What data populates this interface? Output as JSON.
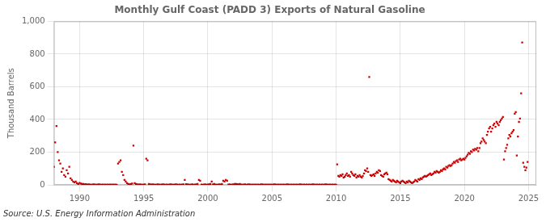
{
  "chart_data": {
    "type": "scatter",
    "title": "Monthly Gulf Coast (PADD 3) Exports of Natural Gasoline",
    "y_label": "Thousand Barrels",
    "annotations": [
      "Source: U.S. Energy Information Administration"
    ],
    "color": "#cc0000",
    "marker": "square",
    "grid": true,
    "xlim": [
      1988.0,
      2025.6
    ],
    "xticks": [
      1990,
      1995,
      2000,
      2005,
      2010,
      2015,
      2020,
      2025
    ],
    "ylim": [
      0,
      1000
    ],
    "yticks": [
      0,
      200,
      400,
      600,
      800,
      {
        "value": 1000,
        "label": "1,000"
      }
    ],
    "x": [
      1988.0,
      1988.1,
      1988.2,
      1988.3,
      1988.4,
      1988.5,
      1988.6,
      1988.7,
      1988.8,
      1988.9,
      1989.0,
      1989.1,
      1989.2,
      1989.3,
      1989.4,
      1989.5,
      1989.6,
      1989.7,
      1989.8,
      1989.9,
      1990.0,
      1990.1,
      1990.2,
      1990.3,
      1990.4,
      1990.5,
      1990.6,
      1990.7,
      1990.8,
      1990.9,
      1991.0,
      1991.1,
      1991.2,
      1991.3,
      1991.4,
      1991.5,
      1991.6,
      1991.7,
      1991.8,
      1991.9,
      1992.0,
      1992.1,
      1992.2,
      1992.3,
      1992.4,
      1992.5,
      1992.6,
      1992.7,
      1992.8,
      1992.9,
      1993.0,
      1993.1,
      1993.2,
      1993.3,
      1993.4,
      1993.5,
      1993.6,
      1993.7,
      1993.8,
      1993.9,
      1994.0,
      1994.1,
      1994.2,
      1994.3,
      1994.4,
      1994.5,
      1994.6,
      1994.7,
      1994.8,
      1994.9,
      1995.0,
      1995.1,
      1995.2,
      1995.3,
      1995.4,
      1995.5,
      1995.6,
      1995.7,
      1995.8,
      1995.9,
      1996.0,
      1996.1,
      1996.2,
      1996.3,
      1996.4,
      1996.5,
      1996.6,
      1996.7,
      1996.8,
      1996.9,
      1997.0,
      1997.1,
      1997.2,
      1997.3,
      1997.4,
      1997.5,
      1997.6,
      1997.7,
      1997.8,
      1997.9,
      1998.0,
      1998.1,
      1998.2,
      1998.3,
      1998.4,
      1998.5,
      1998.6,
      1998.7,
      1998.8,
      1998.9,
      1999.0,
      1999.1,
      1999.2,
      1999.3,
      1999.4,
      1999.5,
      1999.6,
      1999.7,
      1999.8,
      1999.9,
      2000.0,
      2000.1,
      2000.2,
      2000.3,
      2000.4,
      2000.5,
      2000.6,
      2000.7,
      2000.8,
      2000.9,
      2001.0,
      2001.1,
      2001.2,
      2001.3,
      2001.4,
      2001.5,
      2001.6,
      2001.7,
      2001.8,
      2001.9,
      2002.0,
      2002.1,
      2002.2,
      2002.3,
      2002.4,
      2002.5,
      2002.6,
      2002.7,
      2002.8,
      2002.9,
      2003.0,
      2003.1,
      2003.2,
      2003.3,
      2003.4,
      2003.5,
      2003.6,
      2003.7,
      2003.8,
      2003.9,
      2004.0,
      2004.1,
      2004.2,
      2004.3,
      2004.4,
      2004.5,
      2004.6,
      2004.7,
      2004.8,
      2004.9,
      2005.0,
      2005.1,
      2005.2,
      2005.3,
      2005.4,
      2005.5,
      2005.6,
      2005.7,
      2005.8,
      2005.9,
      2006.0,
      2006.1,
      2006.2,
      2006.3,
      2006.4,
      2006.5,
      2006.6,
      2006.7,
      2006.8,
      2006.9,
      2007.0,
      2007.1,
      2007.2,
      2007.3,
      2007.4,
      2007.5,
      2007.6,
      2007.7,
      2007.8,
      2007.9,
      2008.0,
      2008.1,
      2008.2,
      2008.3,
      2008.4,
      2008.5,
      2008.6,
      2008.7,
      2008.8,
      2008.9,
      2009.0,
      2009.1,
      2009.2,
      2009.3,
      2009.4,
      2009.5,
      2009.6,
      2009.7,
      2009.8,
      2009.9,
      2010.0,
      2010.08,
      2010.17,
      2010.25,
      2010.33,
      2010.42,
      2010.5,
      2010.58,
      2010.67,
      2010.75,
      2010.83,
      2010.92,
      2011.0,
      2011.08,
      2011.17,
      2011.25,
      2011.33,
      2011.42,
      2011.5,
      2011.58,
      2011.67,
      2011.75,
      2011.83,
      2011.92,
      2012.0,
      2012.08,
      2012.17,
      2012.25,
      2012.33,
      2012.42,
      2012.5,
      2012.58,
      2012.67,
      2012.75,
      2012.83,
      2012.92,
      2013.0,
      2013.08,
      2013.17,
      2013.25,
      2013.33,
      2013.42,
      2013.5,
      2013.58,
      2013.67,
      2013.75,
      2013.83,
      2013.92,
      2014.0,
      2014.08,
      2014.17,
      2014.25,
      2014.33,
      2014.42,
      2014.5,
      2014.58,
      2014.67,
      2014.75,
      2014.83,
      2014.92,
      2015.0,
      2015.08,
      2015.17,
      2015.25,
      2015.33,
      2015.42,
      2015.5,
      2015.58,
      2015.67,
      2015.75,
      2015.83,
      2015.92,
      2016.0,
      2016.08,
      2016.17,
      2016.25,
      2016.33,
      2016.42,
      2016.5,
      2016.58,
      2016.67,
      2016.75,
      2016.83,
      2016.92,
      2017.0,
      2017.08,
      2017.17,
      2017.25,
      2017.33,
      2017.42,
      2017.5,
      2017.58,
      2017.67,
      2017.75,
      2017.83,
      2017.92,
      2018.0,
      2018.08,
      2018.17,
      2018.25,
      2018.33,
      2018.42,
      2018.5,
      2018.58,
      2018.67,
      2018.75,
      2018.83,
      2018.92,
      2019.0,
      2019.08,
      2019.17,
      2019.25,
      2019.33,
      2019.42,
      2019.5,
      2019.58,
      2019.67,
      2019.75,
      2019.83,
      2019.92,
      2020.0,
      2020.08,
      2020.17,
      2020.25,
      2020.33,
      2020.42,
      2020.5,
      2020.58,
      2020.67,
      2020.75,
      2020.83,
      2020.92,
      2021.0,
      2021.08,
      2021.17,
      2021.25,
      2021.33,
      2021.42,
      2021.5,
      2021.58,
      2021.67,
      2021.75,
      2021.83,
      2021.92,
      2022.0,
      2022.08,
      2022.17,
      2022.25,
      2022.33,
      2022.42,
      2022.5,
      2022.58,
      2022.67,
      2022.75,
      2022.83,
      2022.92,
      2023.0,
      2023.08,
      2023.17,
      2023.25,
      2023.33,
      2023.42,
      2023.5,
      2023.58,
      2023.67,
      2023.75,
      2023.83,
      2023.92,
      2024.0,
      2024.08,
      2024.17,
      2024.25,
      2024.33,
      2024.42,
      2024.5,
      2024.58,
      2024.67,
      2024.75,
      2024.83,
      2024.92
    ],
    "values": [
      110,
      260,
      360,
      200,
      150,
      130,
      80,
      100,
      60,
      50,
      90,
      70,
      110,
      40,
      30,
      20,
      15,
      20,
      10,
      5,
      12,
      8,
      6,
      5,
      3,
      4,
      2,
      3,
      2,
      1,
      2,
      3,
      2,
      1,
      2,
      3,
      2,
      1,
      2,
      1,
      2,
      1,
      2,
      1,
      2,
      1,
      2,
      1,
      2,
      1,
      130,
      140,
      150,
      80,
      60,
      30,
      20,
      10,
      5,
      3,
      5,
      8,
      240,
      10,
      5,
      3,
      2,
      3,
      2,
      1,
      2,
      3,
      160,
      150,
      5,
      3,
      2,
      3,
      2,
      1,
      2,
      3,
      2,
      1,
      2,
      3,
      2,
      1,
      2,
      1,
      2,
      3,
      2,
      1,
      2,
      3,
      2,
      1,
      2,
      1,
      2,
      3,
      30,
      4,
      3,
      2,
      1,
      2,
      3,
      1,
      2,
      3,
      6,
      30,
      25,
      2,
      1,
      2,
      3,
      1,
      2,
      3,
      6,
      20,
      3,
      5,
      2,
      1,
      2,
      3,
      2,
      5,
      25,
      20,
      30,
      25,
      2,
      3,
      1,
      2,
      3,
      5,
      6,
      4,
      3,
      5,
      2,
      1,
      2,
      3,
      1,
      2,
      3,
      2,
      1,
      2,
      1,
      2,
      1,
      2,
      1,
      2,
      3,
      2,
      1,
      2,
      1,
      2,
      1,
      2,
      1,
      2,
      3,
      2,
      1,
      2,
      1,
      2,
      1,
      2,
      1,
      2,
      3,
      2,
      1,
      2,
      1,
      2,
      1,
      2,
      1,
      2,
      3,
      2,
      1,
      2,
      1,
      2,
      1,
      2,
      1,
      2,
      3,
      2,
      1,
      2,
      1,
      2,
      1,
      2,
      1,
      2,
      3,
      2,
      1,
      2,
      1,
      2,
      1,
      2,
      1,
      125,
      55,
      50,
      60,
      55,
      65,
      45,
      50,
      60,
      70,
      55,
      60,
      50,
      80,
      70,
      60,
      55,
      65,
      45,
      55,
      50,
      60,
      50,
      45,
      55,
      70,
      90,
      85,
      100,
      80,
      660,
      60,
      55,
      60,
      65,
      55,
      70,
      80,
      75,
      90,
      85,
      60,
      55,
      50,
      65,
      70,
      75,
      65,
      35,
      30,
      25,
      20,
      30,
      25,
      20,
      15,
      25,
      20,
      15,
      10,
      20,
      25,
      20,
      15,
      10,
      20,
      15,
      25,
      20,
      15,
      10,
      15,
      20,
      30,
      25,
      20,
      35,
      30,
      40,
      35,
      45,
      50,
      55,
      50,
      55,
      60,
      65,
      70,
      60,
      65,
      70,
      80,
      75,
      85,
      80,
      75,
      80,
      90,
      85,
      95,
      100,
      95,
      110,
      105,
      115,
      120,
      115,
      120,
      130,
      140,
      135,
      145,
      150,
      140,
      155,
      160,
      150,
      155,
      160,
      155,
      165,
      175,
      185,
      195,
      190,
      205,
      200,
      215,
      210,
      220,
      215,
      225,
      205,
      225,
      255,
      265,
      285,
      275,
      265,
      255,
      305,
      325,
      345,
      355,
      325,
      345,
      365,
      375,
      355,
      385,
      375,
      365,
      385,
      395,
      405,
      415,
      155,
      205,
      225,
      245,
      285,
      305,
      295,
      315,
      325,
      335,
      435,
      445,
      180,
      295,
      385,
      405,
      560,
      870,
      135,
      110,
      90,
      105,
      140
    ]
  }
}
